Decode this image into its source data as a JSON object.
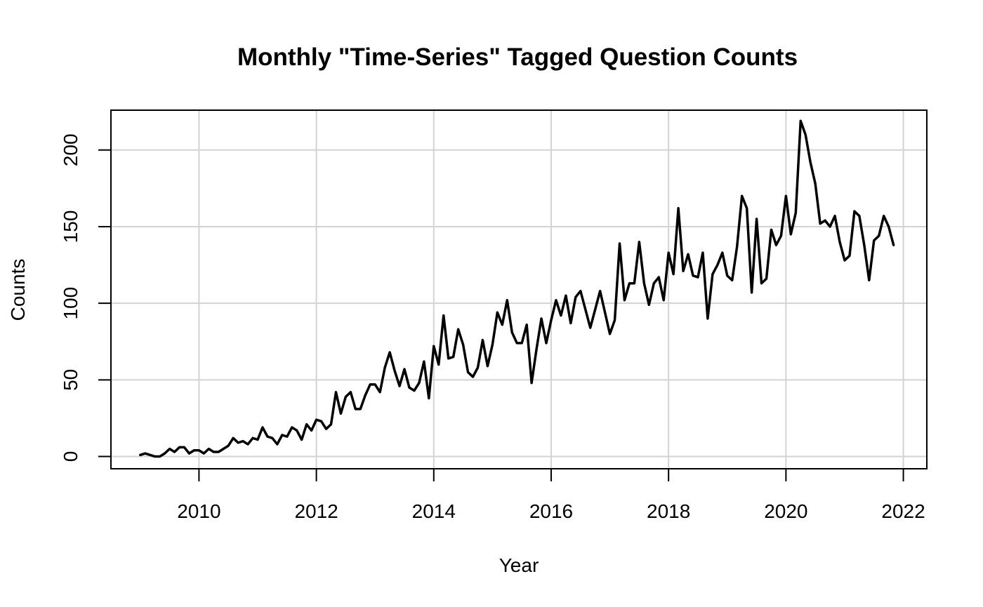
{
  "chart_data": {
    "type": "line",
    "title": "Monthly \"Time-Series\" Tagged Question Counts",
    "xlabel": "Year",
    "ylabel": "Counts",
    "x_start": 2009.0,
    "x_step": 0.08333333,
    "xlim": [
      2008.5,
      2022.4
    ],
    "ylim": [
      -8,
      226
    ],
    "xticks": [
      2010,
      2012,
      2014,
      2016,
      2018,
      2020,
      2022
    ],
    "xtick_labels": [
      "2010",
      "2012",
      "2014",
      "2016",
      "2018",
      "2020",
      "2022"
    ],
    "yticks": [
      0,
      50,
      100,
      150,
      200
    ],
    "ytick_labels": [
      "0",
      "50",
      "100",
      "150",
      "200"
    ],
    "grid": true,
    "line_color": "#000000",
    "grid_color": "#d3d3d3",
    "series": [
      {
        "values": [
          1,
          2,
          1,
          0,
          0,
          2,
          5,
          3,
          6,
          6,
          2,
          4,
          4,
          2,
          5,
          3,
          3,
          5,
          7,
          12,
          9,
          10,
          8,
          12,
          11,
          19,
          13,
          12,
          8,
          14,
          13,
          19,
          17,
          11,
          21,
          17,
          24,
          23,
          18,
          21,
          42,
          28,
          39,
          42,
          31,
          31,
          40,
          47,
          47,
          42,
          58,
          68,
          56,
          46,
          57,
          45,
          43,
          48,
          62,
          38,
          72,
          60,
          92,
          64,
          65,
          83,
          73,
          55,
          52,
          58,
          76,
          59,
          73,
          94,
          86,
          102,
          81,
          74,
          74,
          86,
          48,
          70,
          90,
          74,
          89,
          102,
          92,
          105,
          87,
          104,
          108,
          96,
          84,
          96,
          108,
          94,
          80,
          89,
          139,
          102,
          113,
          113,
          140,
          113,
          99,
          113,
          117,
          102,
          133,
          119,
          162,
          121,
          132,
          118,
          117,
          133,
          90,
          119,
          125,
          133,
          118,
          115,
          137,
          170,
          162,
          107,
          155,
          113,
          116,
          148,
          138,
          144,
          170,
          145,
          159,
          219,
          210,
          192,
          178,
          152,
          154,
          150,
          157,
          140,
          128,
          131,
          160,
          157,
          138,
          115,
          141,
          144,
          157,
          150,
          138
        ]
      }
    ]
  }
}
